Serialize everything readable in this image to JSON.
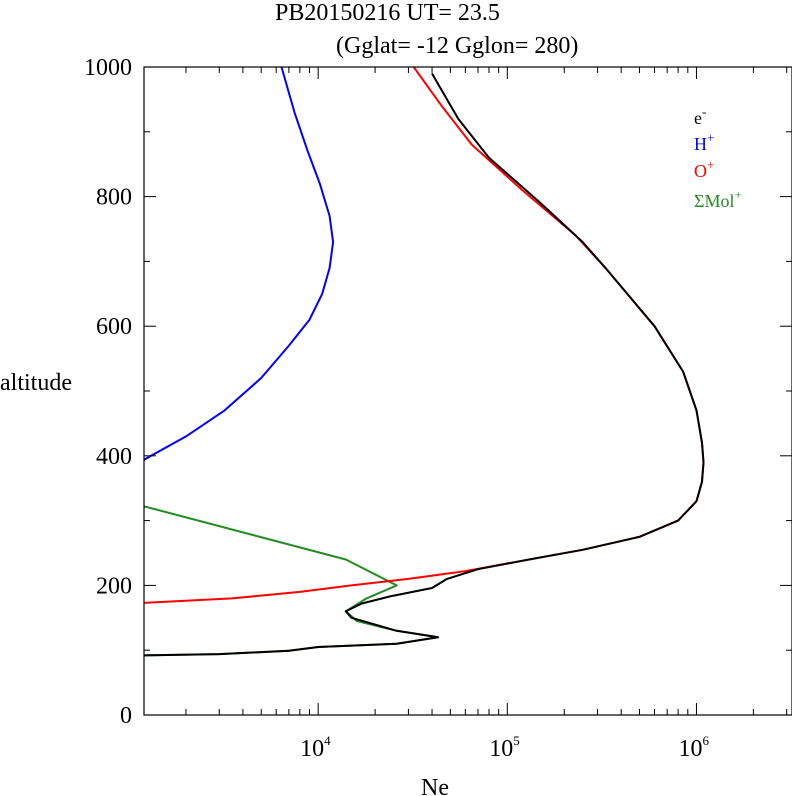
{
  "header": {
    "line1": "PB20150216   UT=  23.5",
    "line2": "(Gglat= -12   Gglon=  280)"
  },
  "chart_data": {
    "type": "line",
    "title": "PB20150216   UT=  23.5",
    "subtitle": "(Gglat= -12   Gglon=  280)",
    "xlabel": "Ne",
    "ylabel": "altitude",
    "x_scale": "log",
    "xlim": [
      1200,
      3200000
    ],
    "ylim": [
      0,
      1000
    ],
    "x_ticks": [
      {
        "value": 10000,
        "base": "10",
        "exp": "4"
      },
      {
        "value": 100000,
        "base": "10",
        "exp": "5"
      },
      {
        "value": 1000000,
        "base": "10",
        "exp": "6"
      }
    ],
    "y_ticks": [
      "0",
      "200",
      "400",
      "600",
      "800",
      "1000"
    ],
    "legend_position": "top-right",
    "series": [
      {
        "name": "e",
        "name_sup": "-",
        "color": "#000000",
        "points": [
          [
            1200,
            92
          ],
          [
            3000,
            94
          ],
          [
            7000,
            99
          ],
          [
            10000,
            105
          ],
          [
            26000,
            110
          ],
          [
            43000,
            120
          ],
          [
            26000,
            130
          ],
          [
            15000,
            150
          ],
          [
            14000,
            160
          ],
          [
            17000,
            172
          ],
          [
            24000,
            183
          ],
          [
            40000,
            196
          ],
          [
            48000,
            210
          ],
          [
            70000,
            225
          ],
          [
            130000,
            240
          ],
          [
            250000,
            255
          ],
          [
            500000,
            275
          ],
          [
            800000,
            300
          ],
          [
            1000000,
            330
          ],
          [
            1070000,
            360
          ],
          [
            1090000,
            390
          ],
          [
            1070000,
            420
          ],
          [
            1000000,
            470
          ],
          [
            850000,
            530
          ],
          [
            600000,
            600
          ],
          [
            330000,
            690
          ],
          [
            250000,
            730
          ],
          [
            150000,
            790
          ],
          [
            80000,
            860
          ],
          [
            55000,
            920
          ],
          [
            40000,
            990
          ]
        ]
      },
      {
        "name": "H",
        "name_sup": "+",
        "color": "#0000ff",
        "points": [
          [
            1200,
            394
          ],
          [
            2000,
            430
          ],
          [
            3200,
            470
          ],
          [
            5000,
            520
          ],
          [
            7000,
            570
          ],
          [
            9000,
            610
          ],
          [
            10500,
            650
          ],
          [
            11500,
            690
          ],
          [
            12000,
            730
          ],
          [
            11500,
            770
          ],
          [
            10200,
            820
          ],
          [
            8800,
            870
          ],
          [
            7500,
            930
          ],
          [
            6400,
            1000
          ]
        ]
      },
      {
        "name": "O",
        "name_sup": "+",
        "color": "#ff0000",
        "points": [
          [
            1200,
            173
          ],
          [
            3500,
            180
          ],
          [
            8000,
            190
          ],
          [
            15000,
            200
          ],
          [
            30000,
            210
          ],
          [
            60000,
            222
          ],
          [
            120000,
            238
          ],
          [
            250000,
            255
          ],
          [
            500000,
            275
          ],
          [
            800000,
            300
          ],
          [
            1000000,
            330
          ],
          [
            1070000,
            360
          ],
          [
            1090000,
            390
          ],
          [
            1070000,
            420
          ],
          [
            1000000,
            470
          ],
          [
            850000,
            530
          ],
          [
            600000,
            600
          ],
          [
            330000,
            690
          ],
          [
            230000,
            740
          ],
          [
            120000,
            810
          ],
          [
            65000,
            880
          ],
          [
            45000,
            940
          ],
          [
            32000,
            1000
          ]
        ]
      },
      {
        "name": "ΣMol",
        "name_sup": "+",
        "color": "#228b22",
        "points": [
          [
            1200,
            322
          ],
          [
            14000,
            240
          ],
          [
            26000,
            200
          ],
          [
            18000,
            180
          ],
          [
            14000,
            160
          ],
          [
            16000,
            145
          ],
          [
            26000,
            130
          ],
          [
            43000,
            120
          ],
          [
            26000,
            110
          ],
          [
            10000,
            105
          ],
          [
            7000,
            99
          ],
          [
            3000,
            94
          ],
          [
            1200,
            92
          ]
        ]
      }
    ]
  }
}
